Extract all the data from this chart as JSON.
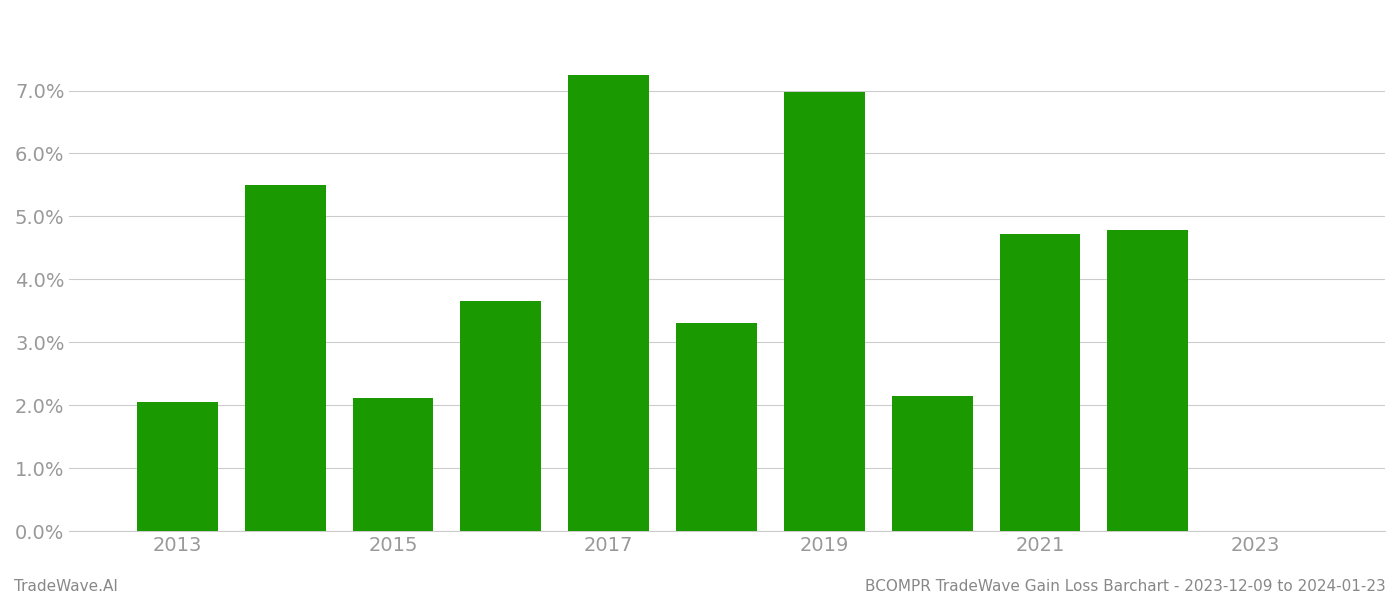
{
  "years": [
    2013,
    2014,
    2015,
    2016,
    2017,
    2018,
    2019,
    2020,
    2021,
    2022
  ],
  "values": [
    0.0205,
    0.055,
    0.0212,
    0.0365,
    0.0725,
    0.033,
    0.0698,
    0.0215,
    0.0472,
    0.0478
  ],
  "bar_color": "#1a9a00",
  "background_color": "#ffffff",
  "grid_color": "#cccccc",
  "footer_left": "TradeWave.AI",
  "footer_right": "BCOMPR TradeWave Gain Loss Barchart - 2023-12-09 to 2024-01-23",
  "footer_color": "#888888",
  "footer_fontsize": 11,
  "xlim": [
    2012.0,
    2024.2
  ],
  "ylim": [
    0,
    0.082
  ],
  "xticks": [
    2013,
    2015,
    2017,
    2019,
    2021,
    2023
  ],
  "yticks": [
    0.0,
    0.01,
    0.02,
    0.03,
    0.04,
    0.05,
    0.06,
    0.07
  ],
  "bar_width": 0.75,
  "tick_label_color": "#999999",
  "tick_label_fontsize": 14,
  "ytick_label_fontsize": 14
}
